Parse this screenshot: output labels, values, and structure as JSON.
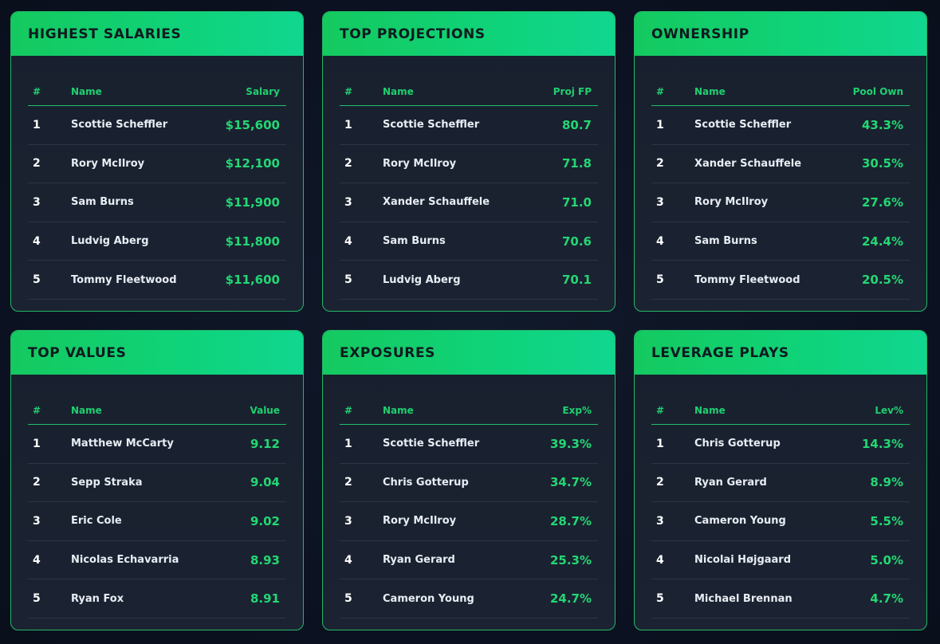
{
  "cards": [
    {
      "title": "HIGHEST SALARIES",
      "headers": [
        "#",
        "Name",
        "Salary"
      ],
      "rows": [
        {
          "rank": "1",
          "name": "Scottie Scheffler",
          "value": "$15,600"
        },
        {
          "rank": "2",
          "name": "Rory McIlroy",
          "value": "$12,100"
        },
        {
          "rank": "3",
          "name": "Sam Burns",
          "value": "$11,900"
        },
        {
          "rank": "4",
          "name": "Ludvig Aberg",
          "value": "$11,800"
        },
        {
          "rank": "5",
          "name": "Tommy Fleetwood",
          "value": "$11,600"
        }
      ]
    },
    {
      "title": "TOP PROJECTIONS",
      "headers": [
        "#",
        "Name",
        "Proj FP"
      ],
      "rows": [
        {
          "rank": "1",
          "name": "Scottie Scheffler",
          "value": "80.7"
        },
        {
          "rank": "2",
          "name": "Rory McIlroy",
          "value": "71.8"
        },
        {
          "rank": "3",
          "name": "Xander Schauffele",
          "value": "71.0"
        },
        {
          "rank": "4",
          "name": "Sam Burns",
          "value": "70.6"
        },
        {
          "rank": "5",
          "name": "Ludvig Aberg",
          "value": "70.1"
        }
      ]
    },
    {
      "title": "OWNERSHIP",
      "headers": [
        "#",
        "Name",
        "Pool Own"
      ],
      "rows": [
        {
          "rank": "1",
          "name": "Scottie Scheffler",
          "value": "43.3%"
        },
        {
          "rank": "2",
          "name": "Xander Schauffele",
          "value": "30.5%"
        },
        {
          "rank": "3",
          "name": "Rory McIlroy",
          "value": "27.6%"
        },
        {
          "rank": "4",
          "name": "Sam Burns",
          "value": "24.4%"
        },
        {
          "rank": "5",
          "name": "Tommy Fleetwood",
          "value": "20.5%"
        }
      ]
    },
    {
      "title": "TOP VALUES",
      "headers": [
        "#",
        "Name",
        "Value"
      ],
      "rows": [
        {
          "rank": "1",
          "name": "Matthew McCarty",
          "value": "9.12"
        },
        {
          "rank": "2",
          "name": "Sepp Straka",
          "value": "9.04"
        },
        {
          "rank": "3",
          "name": "Eric Cole",
          "value": "9.02"
        },
        {
          "rank": "4",
          "name": "Nicolas Echavarria",
          "value": "8.93"
        },
        {
          "rank": "5",
          "name": "Ryan Fox",
          "value": "8.91"
        }
      ]
    },
    {
      "title": "EXPOSURES",
      "headers": [
        "#",
        "Name",
        "Exp%"
      ],
      "rows": [
        {
          "rank": "1",
          "name": "Scottie Scheffler",
          "value": "39.3%"
        },
        {
          "rank": "2",
          "name": "Chris Gotterup",
          "value": "34.7%"
        },
        {
          "rank": "3",
          "name": "Rory McIlroy",
          "value": "28.7%"
        },
        {
          "rank": "4",
          "name": "Ryan Gerard",
          "value": "25.3%"
        },
        {
          "rank": "5",
          "name": "Cameron Young",
          "value": "24.7%"
        }
      ]
    },
    {
      "title": "LEVERAGE PLAYS",
      "headers": [
        "#",
        "Name",
        "Lev%"
      ],
      "rows": [
        {
          "rank": "1",
          "name": "Chris Gotterup",
          "value": "14.3%"
        },
        {
          "rank": "2",
          "name": "Ryan Gerard",
          "value": "8.9%"
        },
        {
          "rank": "3",
          "name": "Cameron Young",
          "value": "5.5%"
        },
        {
          "rank": "4",
          "name": "Nicolai Højgaard",
          "value": "5.0%"
        },
        {
          "rank": "5",
          "name": "Michael Brennan",
          "value": "4.7%"
        }
      ]
    }
  ],
  "colors": {
    "accent": "#1fd06f",
    "header_gradient_start": "#14c95f",
    "header_gradient_end": "#10d690",
    "card_bg": "#1b2332",
    "page_bg": "#0b1120"
  }
}
